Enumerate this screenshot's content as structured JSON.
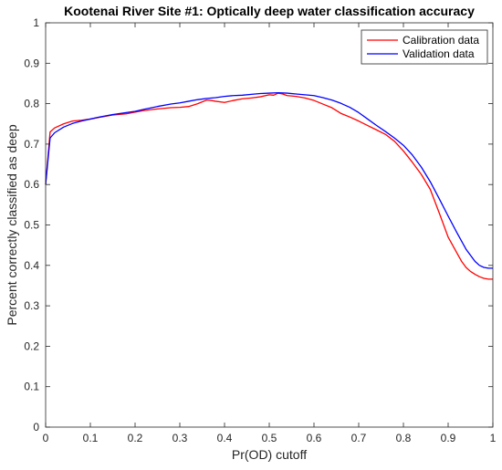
{
  "chart_data": {
    "type": "line",
    "title": "Kootenai River Site #1: Optically deep water classification accuracy",
    "xlabel": "Pr(OD) cutoff",
    "ylabel": "Percent correctly classified as deep",
    "xlim": [
      0,
      1
    ],
    "ylim": [
      0,
      1
    ],
    "xticks": [
      "0",
      "0.1",
      "0.2",
      "0.3",
      "0.4",
      "0.5",
      "0.6",
      "0.7",
      "0.8",
      "0.9",
      "1"
    ],
    "yticks": [
      "0",
      "0.1",
      "0.2",
      "0.3",
      "0.4",
      "0.5",
      "0.6",
      "0.7",
      "0.8",
      "0.9",
      "1"
    ],
    "grid": false,
    "legend_position": "top-right",
    "series": [
      {
        "name": "Calibration data",
        "color": "#ff0000",
        "x": [
          0,
          0.01,
          0.02,
          0.04,
          0.06,
          0.08,
          0.1,
          0.12,
          0.15,
          0.18,
          0.2,
          0.22,
          0.25,
          0.28,
          0.3,
          0.32,
          0.34,
          0.36,
          0.37,
          0.38,
          0.4,
          0.42,
          0.44,
          0.46,
          0.48,
          0.5,
          0.51,
          0.52,
          0.53,
          0.54,
          0.56,
          0.58,
          0.6,
          0.62,
          0.64,
          0.66,
          0.68,
          0.7,
          0.72,
          0.74,
          0.76,
          0.78,
          0.8,
          0.82,
          0.84,
          0.86,
          0.88,
          0.9,
          0.91,
          0.92,
          0.93,
          0.94,
          0.95,
          0.96,
          0.97,
          0.98,
          0.99,
          1.0
        ],
        "y": [
          0.6,
          0.73,
          0.74,
          0.75,
          0.757,
          0.759,
          0.762,
          0.766,
          0.772,
          0.775,
          0.779,
          0.783,
          0.787,
          0.79,
          0.791,
          0.793,
          0.8,
          0.809,
          0.808,
          0.806,
          0.803,
          0.808,
          0.812,
          0.814,
          0.817,
          0.822,
          0.821,
          0.826,
          0.824,
          0.82,
          0.818,
          0.814,
          0.808,
          0.799,
          0.79,
          0.776,
          0.767,
          0.757,
          0.746,
          0.735,
          0.724,
          0.707,
          0.683,
          0.655,
          0.625,
          0.588,
          0.53,
          0.47,
          0.45,
          0.43,
          0.41,
          0.395,
          0.385,
          0.378,
          0.372,
          0.368,
          0.366,
          0.366
        ]
      },
      {
        "name": "Validation data",
        "color": "#0000ff",
        "x": [
          0,
          0.01,
          0.02,
          0.04,
          0.06,
          0.08,
          0.1,
          0.12,
          0.15,
          0.18,
          0.2,
          0.22,
          0.25,
          0.28,
          0.3,
          0.32,
          0.34,
          0.36,
          0.38,
          0.4,
          0.42,
          0.44,
          0.46,
          0.48,
          0.5,
          0.52,
          0.54,
          0.56,
          0.58,
          0.6,
          0.62,
          0.64,
          0.66,
          0.68,
          0.7,
          0.72,
          0.74,
          0.76,
          0.78,
          0.8,
          0.82,
          0.84,
          0.86,
          0.88,
          0.9,
          0.92,
          0.94,
          0.96,
          0.97,
          0.98,
          0.99,
          1.0
        ],
        "y": [
          0.6,
          0.715,
          0.728,
          0.742,
          0.751,
          0.757,
          0.762,
          0.767,
          0.773,
          0.778,
          0.781,
          0.786,
          0.793,
          0.799,
          0.802,
          0.806,
          0.81,
          0.813,
          0.815,
          0.818,
          0.82,
          0.821,
          0.823,
          0.825,
          0.826,
          0.827,
          0.826,
          0.824,
          0.822,
          0.82,
          0.815,
          0.809,
          0.801,
          0.791,
          0.778,
          0.762,
          0.746,
          0.731,
          0.715,
          0.697,
          0.673,
          0.643,
          0.607,
          0.565,
          0.522,
          0.48,
          0.44,
          0.41,
          0.4,
          0.395,
          0.393,
          0.393
        ]
      }
    ]
  }
}
